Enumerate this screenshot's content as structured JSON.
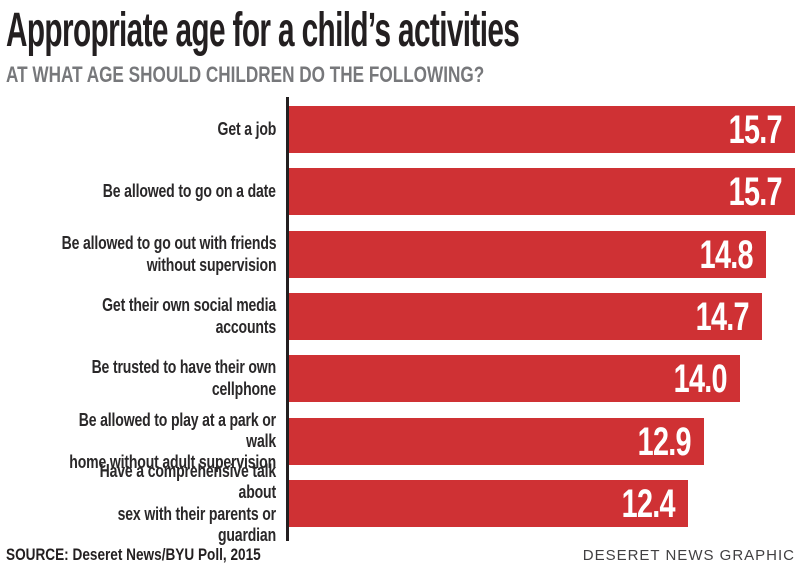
{
  "header": {
    "title": "Appropriate age for a child’s activities",
    "subtitle": "AT WHAT AGE SHOULD CHILDREN DO THE FOLLOWING?"
  },
  "chart_data": {
    "type": "bar",
    "orientation": "horizontal",
    "title": "Appropriate age for a child’s activities",
    "subtitle": "AT WHAT AGE SHOULD CHILDREN DO THE FOLLOWING?",
    "categories": [
      "Get a job",
      "Be allowed to go on a date",
      "Be allowed to go out with friends\nwithout supervision",
      "Get their own social media accounts",
      "Be trusted to have their own cellphone",
      "Be allowed to play at a park or walk\nhome without adult supervision",
      "Have a comprehensive talk about\nsex with their parents or guardian"
    ],
    "values": [
      15.7,
      15.7,
      14.8,
      14.7,
      14.0,
      12.9,
      12.4
    ],
    "value_labels": [
      "15.7",
      "15.7",
      "14.8",
      "14.7",
      "14.0",
      "12.9",
      "12.4"
    ],
    "xlabel": "",
    "ylabel": "",
    "xlim": [
      0,
      15.7
    ],
    "grid": false,
    "legend": "none",
    "bar_color": "#cf3134",
    "value_label_color": "#ffffff",
    "axis_line_color": "#231f20",
    "title_color": "#231f20",
    "subtitle_color": "#77787b"
  },
  "footer": {
    "source": "SOURCE: Deseret News/BYU Poll, 2015",
    "credit": "DESERET NEWS GRAPHIC"
  }
}
